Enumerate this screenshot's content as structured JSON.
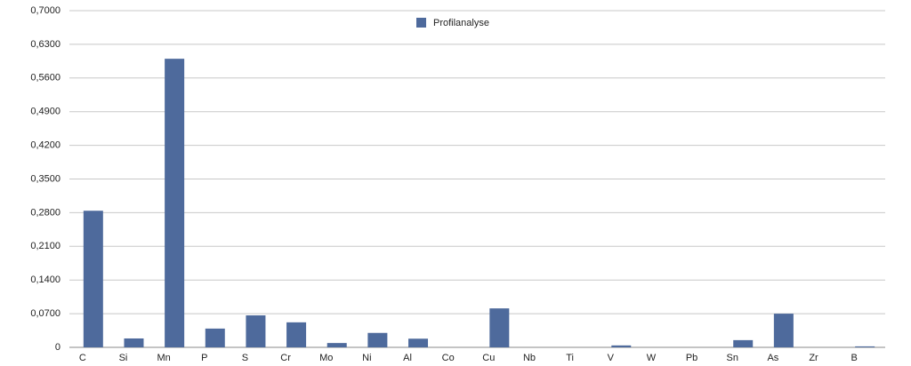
{
  "chart_data": {
    "type": "bar",
    "categories": [
      "C",
      "Si",
      "Mn",
      "P",
      "S",
      "Cr",
      "Mo",
      "Ni",
      "Al",
      "Co",
      "Cu",
      "Nb",
      "Ti",
      "V",
      "W",
      "Pb",
      "Sn",
      "As",
      "Zr",
      "B"
    ],
    "series": [
      {
        "name": "Profilanalyse",
        "color": "#4e6a9c",
        "values": [
          0.284,
          0.0185,
          0.6,
          0.039,
          0.0665,
          0.052,
          0.009,
          0.03,
          0.018,
          0,
          0.081,
          0,
          0,
          0.004,
          0,
          0,
          0.015,
          0.07,
          0,
          0.002
        ]
      }
    ],
    "ylim": [
      0,
      0.7
    ],
    "yticks": [
      0,
      {
        "value": 0.07,
        "label": "0,0700"
      },
      {
        "value": 0.14,
        "label": "0,1400"
      },
      {
        "value": 0.21,
        "label": "0,2100"
      },
      {
        "value": 0.28,
        "label": "0,2800"
      },
      {
        "value": 0.35,
        "label": "0,3500"
      },
      {
        "value": 0.42,
        "label": "0,4200"
      },
      {
        "value": 0.49,
        "label": "0,4900"
      },
      {
        "value": 0.56,
        "label": "0,5600"
      },
      {
        "value": 0.63,
        "label": "0,6300"
      },
      {
        "value": 0.7,
        "label": "0,7000"
      }
    ],
    "grid": true,
    "legend": "top"
  }
}
